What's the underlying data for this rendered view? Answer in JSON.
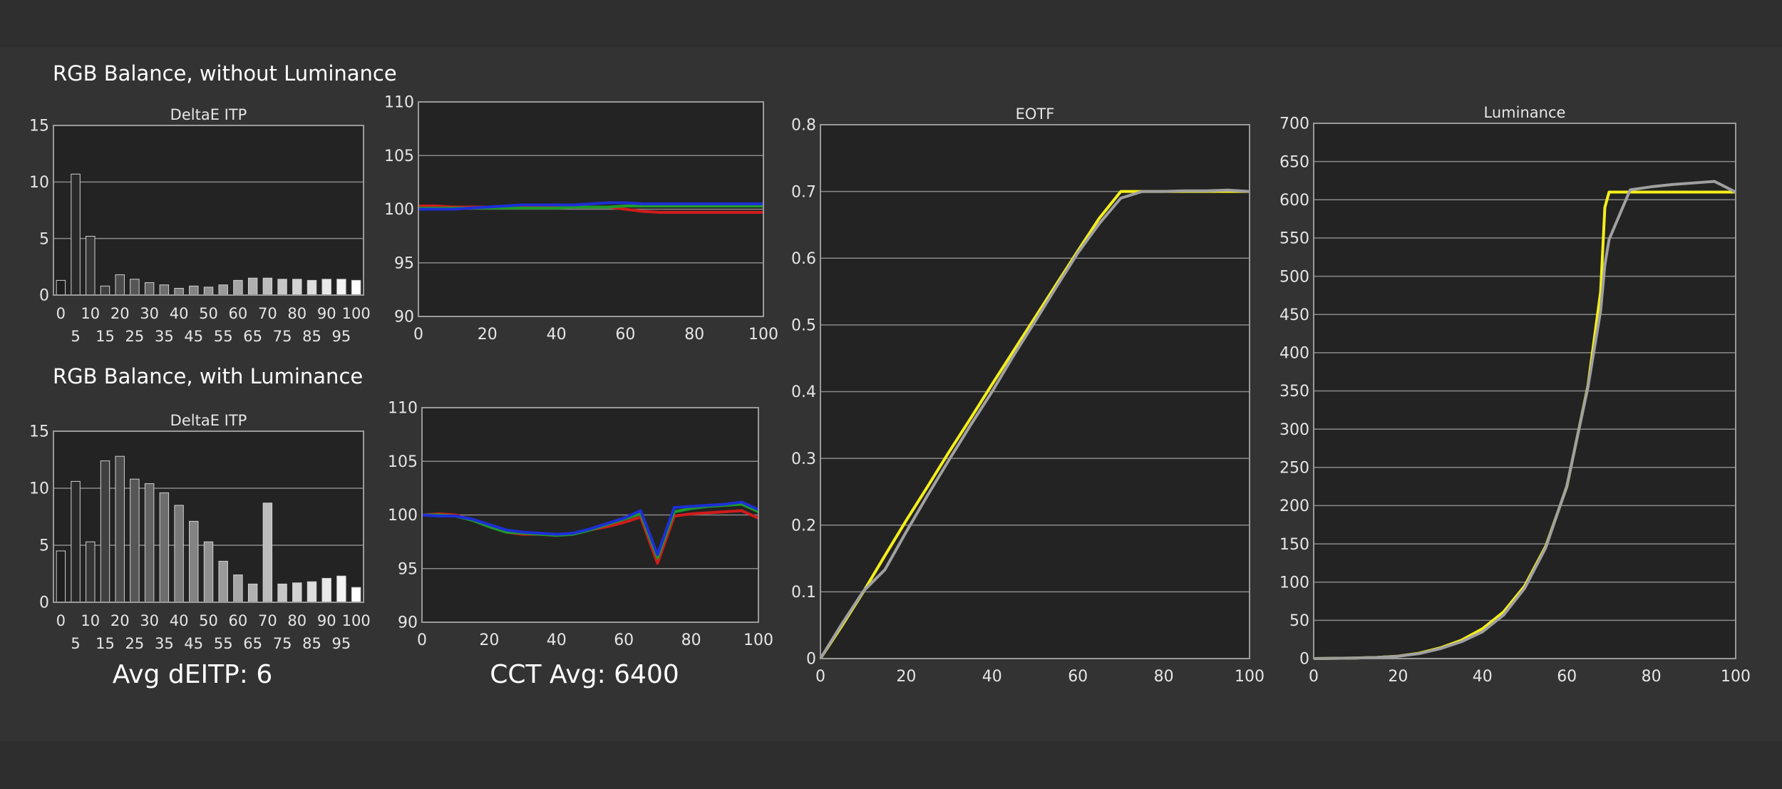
{
  "headings": {
    "without_luminance": "RGB Balance, without Luminance",
    "with_luminance": "RGB Balance, with Luminance"
  },
  "summary": {
    "avg_deitp": "Avg dEITP: 6",
    "cct_avg": "CCT Avg: 6400"
  },
  "colors": {
    "red": "#d01c1c",
    "green": "#1f9a2a",
    "blue": "#1d2fd6",
    "yellow": "#f4ef1a",
    "gray": "#a0a0a0",
    "grid": "#8a8a8a",
    "plot_bg": "#232323"
  },
  "chart_data": [
    {
      "id": "deltae_without_luminance",
      "type": "bar",
      "title": "DeltaE ITP",
      "xlabel": "",
      "ylabel": "",
      "ylim": [
        0,
        15
      ],
      "yticks": [
        "0",
        "5",
        "10",
        "15"
      ],
      "categories": [
        0,
        5,
        10,
        15,
        20,
        25,
        30,
        35,
        40,
        45,
        50,
        55,
        60,
        65,
        70,
        75,
        80,
        85,
        90,
        95,
        100
      ],
      "xtick_labels_row1": [
        "0",
        "10",
        "20",
        "30",
        "40",
        "50",
        "60",
        "70",
        "80",
        "90",
        "100"
      ],
      "xtick_labels_row2": [
        "5",
        "15",
        "25",
        "35",
        "45",
        "55",
        "65",
        "75",
        "85",
        "95"
      ],
      "values": [
        1.3,
        10.7,
        5.2,
        0.8,
        1.8,
        1.4,
        1.1,
        0.9,
        0.6,
        0.8,
        0.7,
        0.9,
        1.3,
        1.5,
        1.5,
        1.4,
        1.4,
        1.3,
        1.4,
        1.4,
        1.3
      ],
      "grid": true
    },
    {
      "id": "rgb_without_luminance",
      "type": "line",
      "title": "",
      "xlim": [
        0,
        100
      ],
      "ylim": [
        90,
        110
      ],
      "xticks": [
        "0",
        "20",
        "40",
        "60",
        "80",
        "100"
      ],
      "yticks": [
        "90",
        "95",
        "100",
        "105",
        "110"
      ],
      "x": [
        0,
        5,
        10,
        15,
        20,
        25,
        30,
        35,
        40,
        45,
        50,
        55,
        60,
        65,
        70,
        75,
        80,
        85,
        90,
        95,
        100
      ],
      "series": [
        {
          "color": "red",
          "values": [
            100.3,
            100.3,
            100.2,
            100.2,
            100.2,
            100.2,
            100.2,
            100.2,
            100.2,
            100.2,
            100.2,
            100.2,
            100.0,
            99.8,
            99.7,
            99.7,
            99.7,
            99.7,
            99.7,
            99.7,
            99.7
          ]
        },
        {
          "color": "green",
          "values": [
            100.1,
            100.1,
            100.1,
            100.1,
            100.1,
            100.1,
            100.1,
            100.1,
            100.1,
            100.2,
            100.2,
            100.2,
            100.3,
            100.3,
            100.3,
            100.3,
            100.3,
            100.3,
            100.3,
            100.3,
            100.3
          ]
        },
        {
          "color": "blue",
          "values": [
            100.0,
            100.0,
            100.0,
            100.1,
            100.2,
            100.3,
            100.4,
            100.4,
            100.4,
            100.4,
            100.5,
            100.6,
            100.6,
            100.5,
            100.5,
            100.5,
            100.5,
            100.5,
            100.5,
            100.5,
            100.5
          ]
        }
      ],
      "grid": true
    },
    {
      "id": "deltae_with_luminance",
      "type": "bar",
      "title": "DeltaE ITP",
      "xlabel": "",
      "ylabel": "",
      "ylim": [
        0,
        15
      ],
      "yticks": [
        "0",
        "5",
        "10",
        "15"
      ],
      "categories": [
        0,
        5,
        10,
        15,
        20,
        25,
        30,
        35,
        40,
        45,
        50,
        55,
        60,
        65,
        70,
        75,
        80,
        85,
        90,
        95,
        100
      ],
      "xtick_labels_row1": [
        "0",
        "10",
        "20",
        "30",
        "40",
        "50",
        "60",
        "70",
        "80",
        "90",
        "100"
      ],
      "xtick_labels_row2": [
        "5",
        "15",
        "25",
        "35",
        "45",
        "55",
        "65",
        "75",
        "85",
        "95"
      ],
      "values": [
        4.5,
        10.6,
        5.3,
        12.4,
        12.8,
        10.8,
        10.4,
        9.6,
        8.5,
        7.1,
        5.3,
        3.6,
        2.4,
        1.6,
        8.7,
        1.6,
        1.7,
        1.8,
        2.1,
        2.3,
        1.3
      ],
      "grid": true
    },
    {
      "id": "rgb_with_luminance",
      "type": "line",
      "title": "",
      "xlim": [
        0,
        100
      ],
      "ylim": [
        90,
        110
      ],
      "xticks": [
        "0",
        "20",
        "40",
        "60",
        "80",
        "100"
      ],
      "yticks": [
        "90",
        "95",
        "100",
        "105",
        "110"
      ],
      "x": [
        0,
        5,
        10,
        15,
        20,
        25,
        30,
        35,
        40,
        45,
        50,
        55,
        60,
        65,
        70,
        75,
        80,
        85,
        90,
        95,
        100
      ],
      "series": [
        {
          "color": "red",
          "values": [
            100.0,
            100.1,
            100.0,
            99.5,
            99.0,
            98.4,
            98.2,
            98.2,
            98.1,
            98.3,
            98.6,
            98.9,
            99.3,
            99.8,
            95.5,
            99.9,
            100.1,
            100.2,
            100.3,
            100.4,
            99.7
          ]
        },
        {
          "color": "green",
          "values": [
            100.0,
            100.0,
            99.9,
            99.5,
            98.9,
            98.4,
            98.3,
            98.2,
            98.1,
            98.2,
            98.6,
            99.1,
            99.6,
            100.1,
            96.0,
            100.3,
            100.6,
            100.8,
            100.9,
            101.0,
            100.3
          ]
        },
        {
          "color": "blue",
          "values": [
            100.0,
            99.9,
            99.9,
            99.6,
            99.1,
            98.6,
            98.4,
            98.3,
            98.2,
            98.3,
            98.7,
            99.2,
            99.7,
            100.4,
            96.3,
            100.7,
            100.8,
            100.9,
            101.0,
            101.2,
            100.5
          ]
        }
      ],
      "grid": true
    },
    {
      "id": "eotf",
      "type": "line",
      "title": "EOTF",
      "xlim": [
        0,
        100
      ],
      "ylim": [
        0,
        0.8
      ],
      "xticks": [
        "0",
        "20",
        "40",
        "60",
        "80",
        "100"
      ],
      "yticks": [
        "0",
        "0.1",
        "0.2",
        "0.3",
        "0.4",
        "0.5",
        "0.6",
        "0.7",
        "0.8"
      ],
      "x": [
        0,
        5,
        10,
        15,
        20,
        25,
        30,
        35,
        40,
        45,
        50,
        55,
        60,
        65,
        70,
        75,
        80,
        85,
        90,
        95,
        100
      ],
      "series": [
        {
          "color": "yellow",
          "values": [
            0.0,
            0.049,
            0.1,
            0.154,
            0.207,
            0.258,
            0.31,
            0.36,
            0.411,
            0.461,
            0.511,
            0.561,
            0.611,
            0.66,
            0.7,
            0.7,
            0.7,
            0.7,
            0.7,
            0.7,
            0.7
          ]
        },
        {
          "color": "gray",
          "values": [
            0.0,
            0.052,
            0.101,
            0.133,
            0.19,
            0.245,
            0.298,
            0.35,
            0.4,
            0.454,
            0.505,
            0.557,
            0.608,
            0.652,
            0.69,
            0.7,
            0.7,
            0.701,
            0.701,
            0.702,
            0.7
          ]
        }
      ],
      "grid": true
    },
    {
      "id": "luminance",
      "type": "line",
      "title": "Luminance",
      "xlim": [
        0,
        100
      ],
      "ylim": [
        0,
        700
      ],
      "xticks": [
        "0",
        "20",
        "40",
        "60",
        "80",
        "100"
      ],
      "yticks": [
        "0",
        "50",
        "100",
        "150",
        "200",
        "250",
        "300",
        "350",
        "400",
        "450",
        "500",
        "550",
        "600",
        "650",
        "700"
      ],
      "x": [
        0,
        5,
        10,
        15,
        20,
        25,
        30,
        35,
        40,
        45,
        50,
        55,
        60,
        65,
        68,
        69,
        70,
        75,
        80,
        85,
        90,
        95,
        100
      ],
      "series": [
        {
          "color": "yellow",
          "values": [
            0,
            0.3,
            0.7,
            1.5,
            3.2,
            7,
            14,
            24,
            39,
            61,
            95,
            147,
            225,
            357,
            480,
            590,
            610,
            610,
            610,
            610,
            610,
            610,
            610
          ]
        },
        {
          "color": "gray",
          "values": [
            0,
            0.3,
            0.7,
            1.5,
            3.0,
            6.5,
            13,
            22,
            35,
            57,
            92,
            145,
            226,
            355,
            455,
            515,
            548,
            613,
            617,
            620,
            622,
            624,
            610
          ]
        }
      ],
      "grid": true
    }
  ]
}
